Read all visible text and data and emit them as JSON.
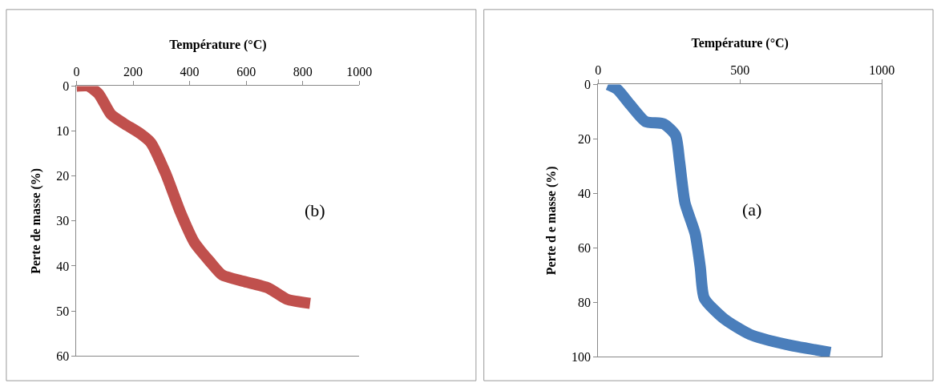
{
  "chart_data": [
    {
      "type": "line",
      "xlabel": "Température (°C)",
      "ylabel": "Perte de masse (%)",
      "annotations": [
        "(b)"
      ],
      "xlim": [
        0,
        1000
      ],
      "xticks": [
        0,
        200,
        400,
        600,
        800,
        1000
      ],
      "ylim": [
        60,
        0
      ],
      "yticks": [
        0,
        10,
        20,
        30,
        40,
        50,
        60
      ],
      "marker": "none",
      "line_style": "solid",
      "series": [
        {
          "color": "#c0504d",
          "x": [
            0,
            41,
            78,
            122,
            167,
            226,
            263,
            315,
            367,
            418,
            470,
            515,
            589,
            678,
            744,
            826
          ],
          "values": [
            0,
            0,
            1.7,
            6.3,
            8.3,
            10.6,
            12.6,
            19.4,
            28,
            34.9,
            38.9,
            42,
            43.4,
            44.9,
            47.4,
            48.3
          ]
        }
      ]
    },
    {
      "type": "line",
      "xlabel": "Température (°C)",
      "ylabel": "Perte d e masse (%)",
      "annotations": [
        "(a)"
      ],
      "xlim": [
        0,
        1000
      ],
      "xticks": [
        0,
        500,
        1000
      ],
      "ylim": [
        100,
        0
      ],
      "yticks": [
        0,
        20,
        40,
        60,
        80,
        100
      ],
      "marker": "none",
      "line_style": "solid",
      "series": [
        {
          "color": "#4a7ebb",
          "x": [
            35,
            67,
            113,
            167,
            232,
            273,
            287,
            306,
            342,
            360,
            374,
            443,
            535,
            663,
            819
          ],
          "values": [
            0,
            1.7,
            7.4,
            13.6,
            14.5,
            18.7,
            28.2,
            43.4,
            54.8,
            67.1,
            78.5,
            86,
            91.8,
            95.5,
            98.4
          ]
        }
      ]
    }
  ]
}
